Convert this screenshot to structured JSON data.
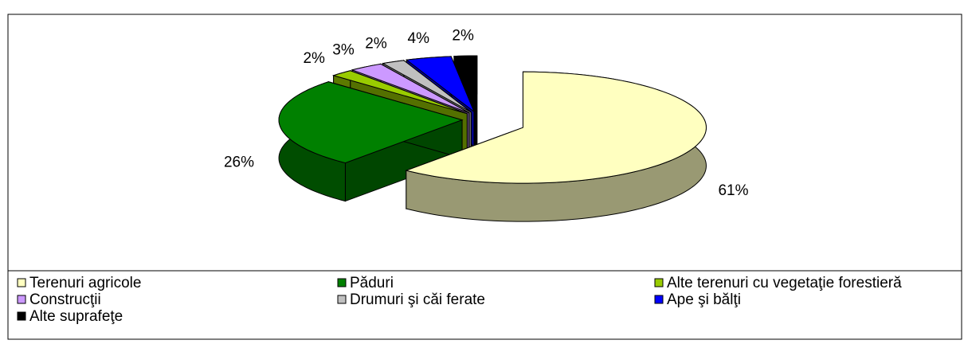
{
  "chart_data": {
    "type": "pie3d",
    "categories": [
      "Terenuri agricole",
      "Păduri",
      "Alte terenuri cu vegetaţie forestieră",
      "Construcţii",
      "Drumuri şi căi ferate",
      "Ape şi bălţi",
      "Alte suprafeţe"
    ],
    "values": [
      61,
      26,
      2,
      3,
      2,
      4,
      2
    ],
    "value_labels": [
      "61%",
      "26%",
      "2%",
      "3%",
      "2%",
      "4%",
      "2%"
    ],
    "colors": [
      "#ffffc0",
      "#008000",
      "#99cc00",
      "#cc99ff",
      "#c0c0c0",
      "#0000ff",
      "#000000"
    ]
  }
}
